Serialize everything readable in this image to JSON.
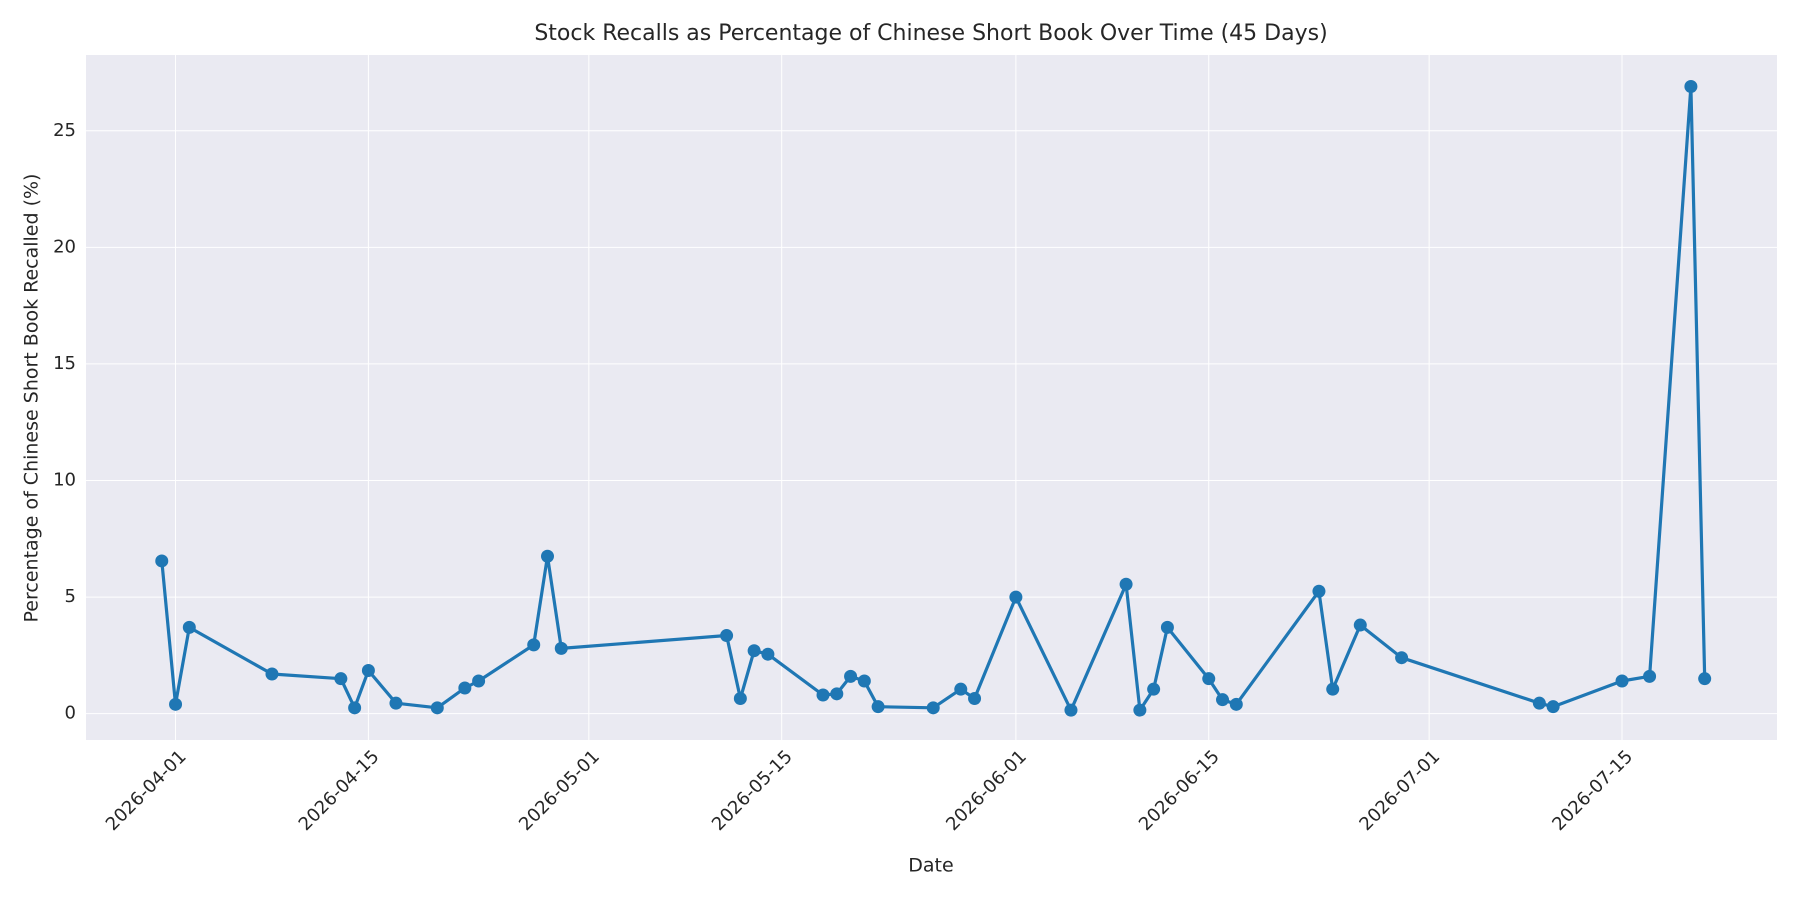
{
  "chart_data": {
    "type": "line",
    "title": "Stock Recalls as Percentage of Chinese Short Book Over Time (45 Days)",
    "x_label": "Date",
    "y_label": "Percentage of Chinese Short Book Recalled (%)",
    "x": [
      "2026-03-31",
      "2026-04-01",
      "2026-04-02",
      "2026-04-08",
      "2026-04-13",
      "2026-04-14",
      "2026-04-15",
      "2026-04-17",
      "2026-04-20",
      "2026-04-22",
      "2026-04-23",
      "2026-04-27",
      "2026-04-28",
      "2026-04-29",
      "2026-05-11",
      "2026-05-12",
      "2026-05-13",
      "2026-05-14",
      "2026-05-18",
      "2026-05-19",
      "2026-05-20",
      "2026-05-21",
      "2026-05-22",
      "2026-05-26",
      "2026-05-28",
      "2026-05-29",
      "2026-06-01",
      "2026-06-05",
      "2026-06-09",
      "2026-06-10",
      "2026-06-11",
      "2026-06-12",
      "2026-06-15",
      "2026-06-16",
      "2026-06-17",
      "2026-06-23",
      "2026-06-24",
      "2026-06-26",
      "2026-06-29",
      "2026-07-09",
      "2026-07-10",
      "2026-07-15",
      "2026-07-17",
      "2026-07-20",
      "2026-07-21"
    ],
    "series": [
      {
        "name": "Recall %",
        "color": "#1f77b4",
        "values": [
          6.55,
          0.4,
          3.7,
          1.7,
          1.5,
          0.25,
          1.85,
          0.45,
          0.25,
          1.1,
          1.4,
          2.95,
          6.75,
          2.8,
          3.35,
          0.65,
          2.7,
          2.55,
          0.8,
          0.85,
          1.6,
          1.4,
          0.3,
          0.25,
          1.05,
          0.65,
          5.0,
          0.15,
          5.55,
          0.15,
          1.05,
          3.7,
          1.5,
          0.6,
          0.4,
          5.25,
          1.05,
          3.8,
          2.4,
          0.45,
          0.3,
          1.4,
          1.6,
          26.9,
          1.5
        ]
      }
    ],
    "xlim": [
      "2026-03-25T12:00",
      "2026-07-26T06:00"
    ],
    "xticks": [
      "2026-04-01",
      "2026-04-15",
      "2026-05-01",
      "2026-05-15",
      "2026-06-01",
      "2026-06-15",
      "2026-07-01",
      "2026-07-15"
    ],
    "ylim": [
      -1.13,
      28.25
    ],
    "yticks": [
      0,
      5,
      10,
      15,
      20,
      25
    ],
    "grid": true
  }
}
